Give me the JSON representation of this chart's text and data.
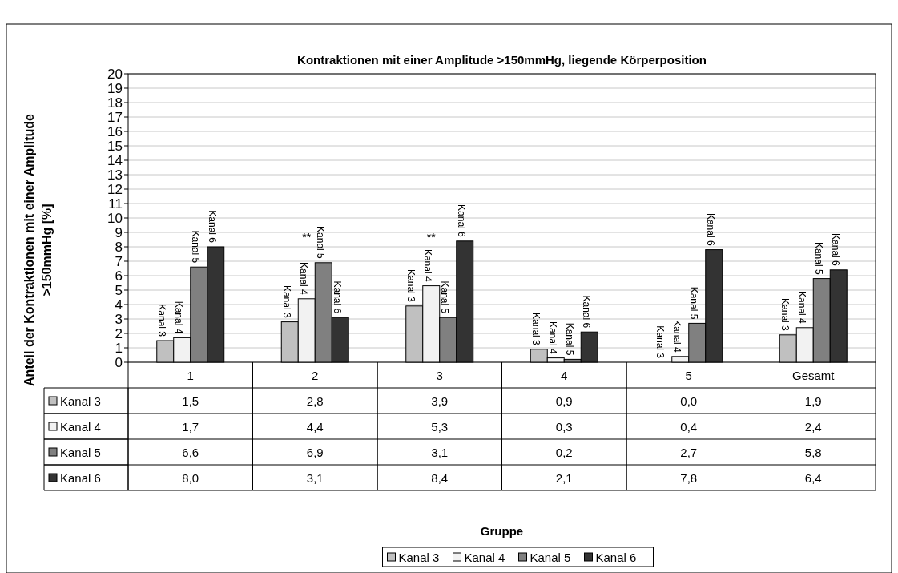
{
  "chart_data": {
    "type": "bar",
    "title": "Kontraktionen mit einer Amplitude >150mmHg, liegende Körperposition",
    "ylabel": "Anteil der Kontraktionen mit einer Amplitude >150mmHg [%]",
    "categories": [
      "1",
      "2",
      "3",
      "4",
      "5",
      "Gesamt"
    ],
    "series": [
      {
        "name": "Kanal 3",
        "color": "#c0c0c0",
        "values": [
          1.5,
          2.8,
          3.9,
          0.9,
          0.0,
          1.9
        ],
        "value_labels": [
          "1,5",
          "2,8",
          "3,9",
          "0,9",
          "0,0",
          "1,9"
        ]
      },
      {
        "name": "Kanal 4",
        "color": "#f2f2f2",
        "values": [
          1.7,
          4.4,
          5.3,
          0.3,
          0.4,
          2.4
        ],
        "value_labels": [
          "1,7",
          "4,4",
          "5,3",
          "0,3",
          "0,4",
          "2,4"
        ]
      },
      {
        "name": "Kanal 5",
        "color": "#808080",
        "values": [
          6.6,
          6.9,
          3.1,
          0.2,
          2.7,
          5.8
        ],
        "value_labels": [
          "6,6",
          "6,9",
          "3,1",
          "0,2",
          "2,7",
          "5,8"
        ]
      },
      {
        "name": "Kanal 6",
        "color": "#333333",
        "values": [
          8.0,
          3.1,
          8.4,
          2.1,
          7.8,
          6.4
        ],
        "value_labels": [
          "8,0",
          "3,1",
          "8,4",
          "2,1",
          "7,8",
          "6,4"
        ]
      }
    ],
    "annotations": [
      "**",
      "**",
      "Gruppe"
    ],
    "ylim": [
      0,
      20
    ],
    "yticks": [
      0,
      1,
      2,
      3,
      4,
      5,
      6,
      7,
      8,
      9,
      10,
      11,
      12,
      13,
      14,
      15,
      16,
      17,
      18,
      19,
      20
    ],
    "grid": "y",
    "legend": "bottom"
  }
}
